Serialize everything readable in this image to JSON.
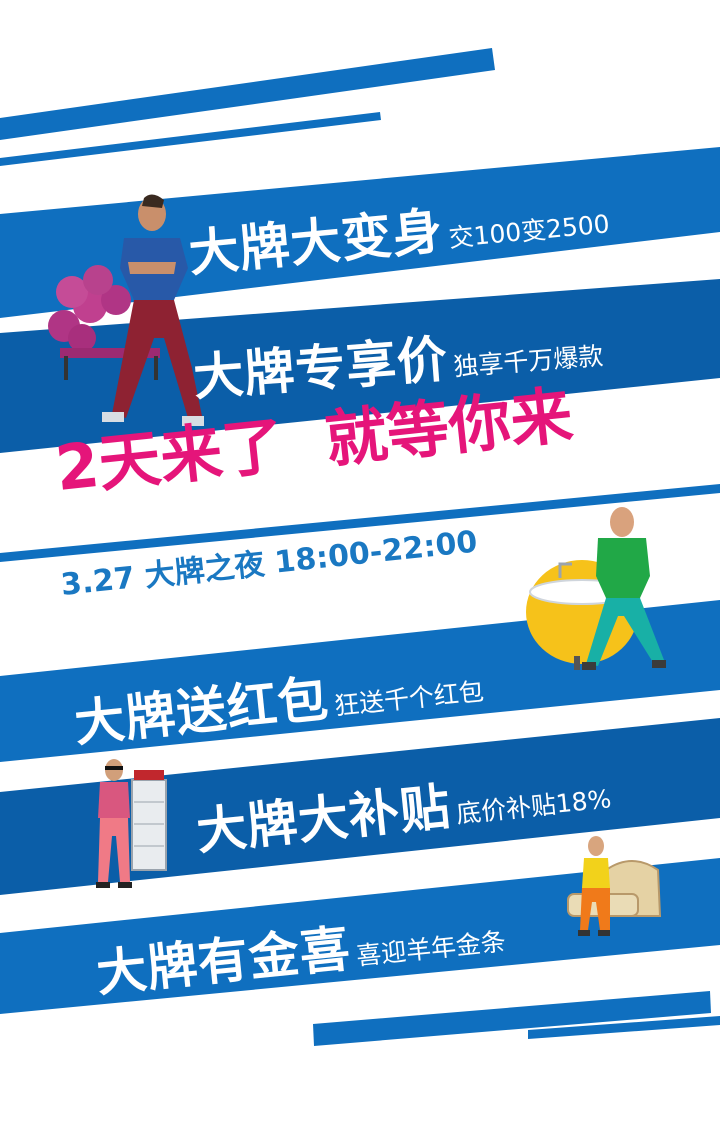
{
  "colors": {
    "primary_blue": "#0f6fbf",
    "dark_blue": "#0b5ea8",
    "accent_pink": "#e5157a",
    "text_blue": "#1a78c2",
    "white": "#ffffff"
  },
  "banners": [
    {
      "title": "大牌大变身",
      "subtitle": "交100变2500"
    },
    {
      "title": "大牌专享价",
      "subtitle": "独享千万爆款"
    },
    {
      "title": "大牌送红包",
      "subtitle": "狂送千个红包"
    },
    {
      "title": "大牌大补贴",
      "subtitle": "底价补贴18%"
    },
    {
      "title": "大牌有金喜",
      "subtitle": "喜迎羊年金条"
    }
  ],
  "headline": {
    "part1": "2天来了",
    "part2": "就等你来"
  },
  "event_time": "3.27 大牌之夜 18:00-22:00",
  "figures": [
    "man-with-sofa",
    "man-with-bathtub",
    "man-with-cabinet",
    "man-with-bed"
  ]
}
